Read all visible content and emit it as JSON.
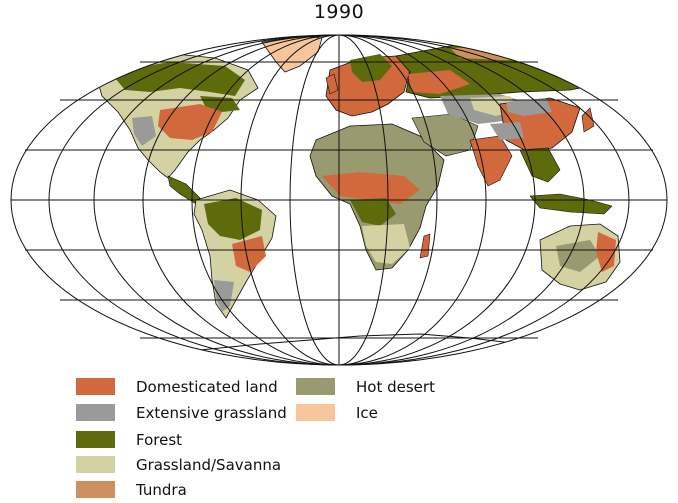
{
  "title": "1990",
  "legend": [
    {
      "label": "Domesticated land",
      "color": "#d2693c"
    },
    {
      "label": "Extensive grassland",
      "color": "#9a9a98"
    },
    {
      "label": "Forest",
      "color": "#5e6b0b"
    },
    {
      "label": "Grassland/Savanna",
      "color": "#d4d2a2"
    },
    {
      "label": "Tundra",
      "color": "#cf9060"
    },
    {
      "label": "Hot desert",
      "color": "#9a9a70"
    },
    {
      "label": "Ice",
      "color": "#f7c59c"
    }
  ]
}
